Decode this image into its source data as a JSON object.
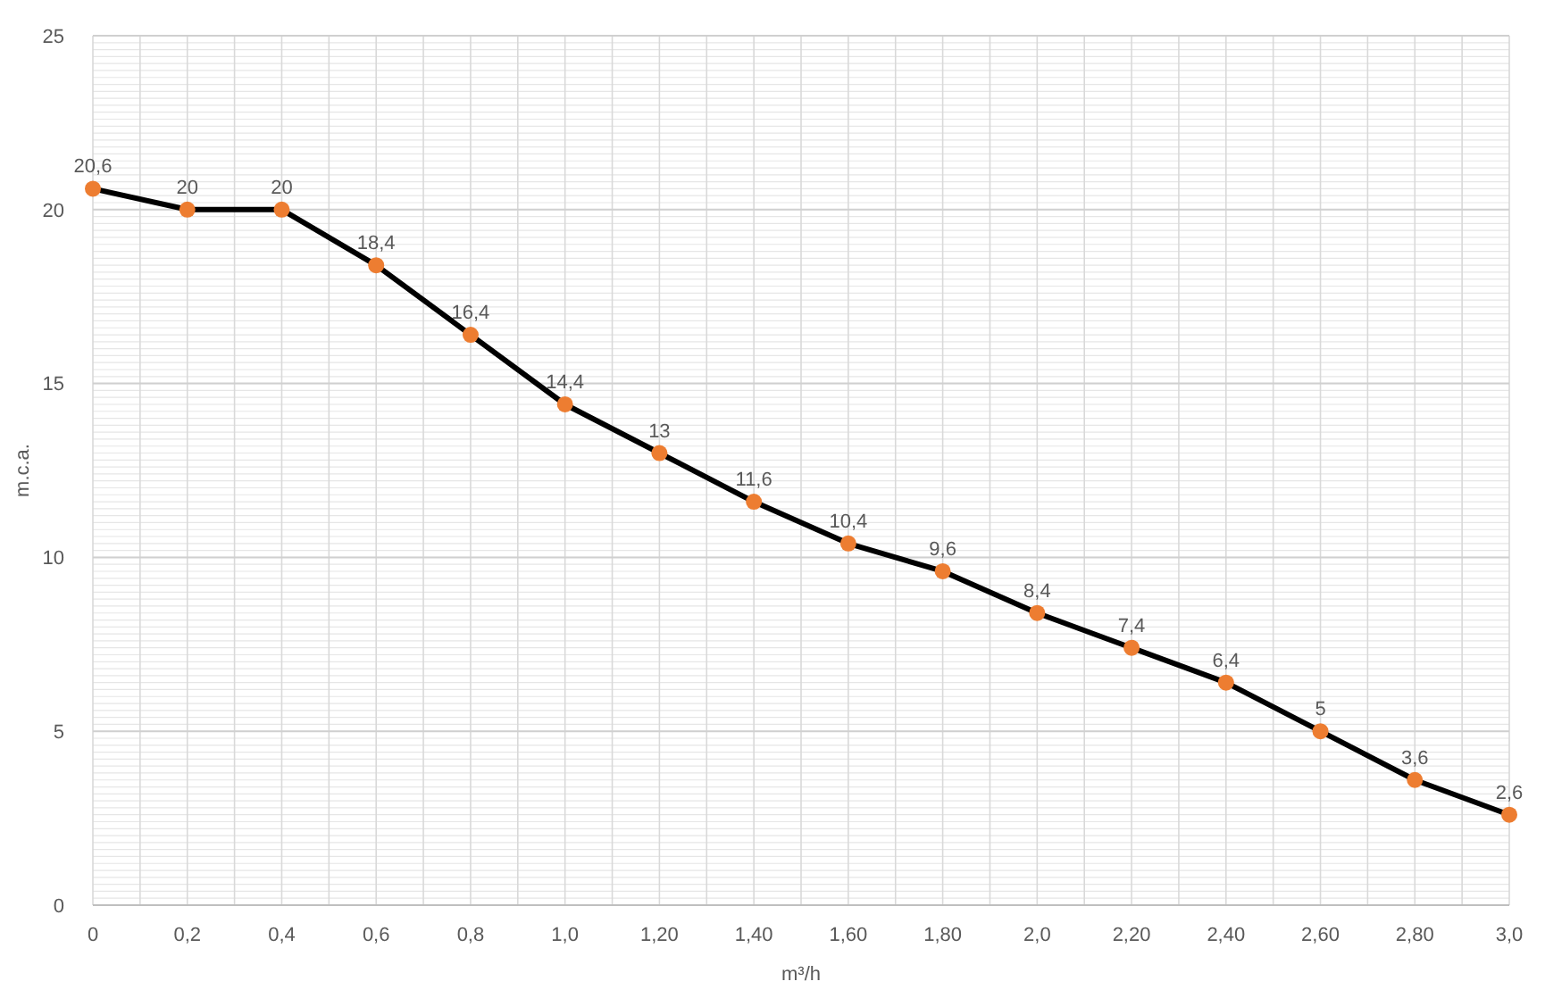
{
  "chart_data": {
    "type": "line",
    "xlabel": "m³/h",
    "ylabel": "m.c.a.",
    "categories": [
      "0",
      "0,2",
      "0,4",
      "0,6",
      "0,8",
      "1,0",
      "1,20",
      "1,40",
      "1,60",
      "1,80",
      "2,0",
      "2,20",
      "2,40",
      "2,60",
      "2,80",
      "3,0"
    ],
    "series": [
      {
        "color": "#000000",
        "colors": [
          "#ed7d31",
          "#ed7d31",
          "#ed7d31",
          "#ed7d31",
          "#ed7d31",
          "#ed7d31",
          "#ed7d31",
          "#ed7d31",
          "#ed7d31",
          "#ed7d31",
          "#ed7d31",
          "#ed7d31",
          "#ed7d31",
          "#ed7d31",
          "#ed7d31",
          "#ed7d31"
        ],
        "values": [
          20.6,
          20,
          20,
          18.4,
          16.4,
          14.4,
          13,
          11.6,
          10.4,
          9.6,
          8.4,
          7.4,
          6.4,
          5,
          3.6,
          2.6
        ],
        "value_labels": [
          "20,6",
          "20",
          "20",
          "18,4",
          "16,4",
          "14,4",
          "13",
          "11,6",
          "10,4",
          "9,6",
          "8,4",
          "7,4",
          "6,4",
          "5",
          "3,6",
          "2,6"
        ]
      }
    ],
    "ylim": [
      0,
      25
    ],
    "yticks": [
      0,
      5,
      10,
      15,
      20,
      25
    ],
    "grid": true,
    "marker": "circle",
    "line_style": "solid"
  }
}
